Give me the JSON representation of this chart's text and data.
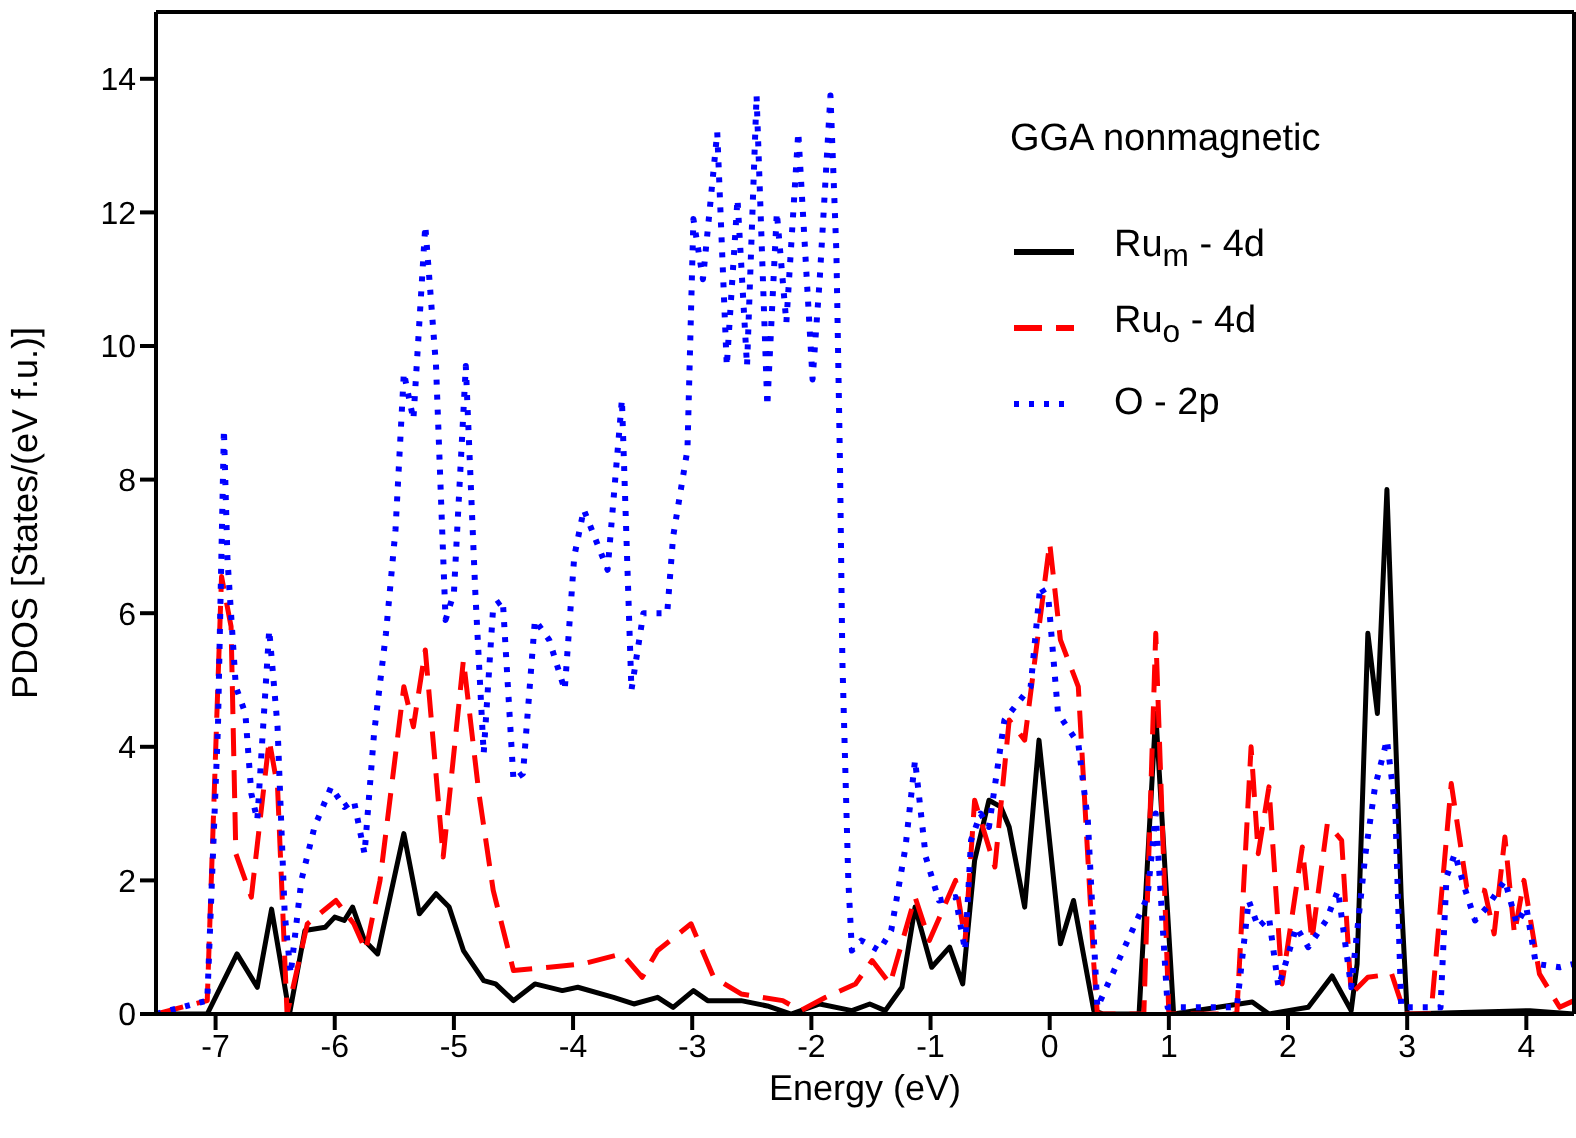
{
  "chart_data": {
    "type": "line",
    "xlabel": "Energy (eV)",
    "ylabel": "PDOS [States/(eV f.u.)]",
    "legend_title": "GGA nonmagnetic",
    "legend": "top right",
    "grid": false,
    "xlim": [
      -7.5,
      4.4
    ],
    "xticks": [
      -7,
      -6,
      -5,
      -4,
      -3,
      -2,
      -1,
      0,
      1,
      2,
      3,
      4
    ],
    "ylim": [
      0,
      15
    ],
    "yticks": [
      0,
      2,
      4,
      6,
      8,
      10,
      12,
      14
    ],
    "series": [
      {
        "name": "Ru$_{m}$ - 4d",
        "color": "#000000",
        "line_style": "solid",
        "x": [
          -7.5,
          -7.07,
          -6.82,
          -6.65,
          -6.53,
          -6.38,
          -6.25,
          -6.08,
          -6.0,
          -5.92,
          -5.85,
          -5.75,
          -5.64,
          -5.42,
          -5.29,
          -5.15,
          -5.04,
          -4.92,
          -4.75,
          -4.65,
          -4.5,
          -4.32,
          -4.09,
          -3.96,
          -3.66,
          -3.49,
          -3.29,
          -3.16,
          -2.99,
          -2.87,
          -2.59,
          -2.37,
          -2.17,
          -1.93,
          -1.66,
          -1.51,
          -1.38,
          -1.24,
          -1.13,
          -0.99,
          -0.84,
          -0.73,
          -0.63,
          -0.51,
          -0.41,
          -0.34,
          -0.21,
          -0.09,
          0.09,
          0.2,
          0.37,
          0.45,
          0.75,
          0.89,
          1.04,
          1.7,
          1.84,
          2.0,
          2.17,
          2.37,
          2.53,
          2.58,
          2.67,
          2.75,
          2.83,
          2.95,
          3.0,
          4.03,
          4.4
        ],
        "values": [
          0,
          0,
          0.9,
          0.4,
          1.57,
          0,
          1.25,
          1.3,
          1.45,
          1.4,
          1.6,
          1.1,
          0.9,
          2.7,
          1.5,
          1.8,
          1.6,
          0.95,
          0.5,
          0.45,
          0.2,
          0.45,
          0.35,
          0.4,
          0.25,
          0.15,
          0.25,
          0.1,
          0.35,
          0.2,
          0.2,
          0.12,
          0,
          0.15,
          0.05,
          0.15,
          0.05,
          0.4,
          1.6,
          0.7,
          1.0,
          0.45,
          2.3,
          3.2,
          3.1,
          2.8,
          1.6,
          4.1,
          1.05,
          1.7,
          0.05,
          0,
          0,
          4.5,
          0,
          0.18,
          0,
          0.05,
          0.1,
          0.57,
          0.05,
          0.75,
          5.7,
          4.5,
          7.85,
          1.75,
          0,
          0.05,
          0
        ]
      },
      {
        "name": "Ru$_{o}$ - 4d",
        "color": "#ff0000",
        "line_style": "dashed",
        "x": [
          -7.5,
          -7.07,
          -6.95,
          -6.87,
          -6.83,
          -6.7,
          -6.55,
          -6.48,
          -6.4,
          -6.23,
          -5.99,
          -5.84,
          -5.74,
          -5.62,
          -5.42,
          -5.34,
          -5.24,
          -5.09,
          -4.92,
          -4.79,
          -4.67,
          -4.5,
          -4.2,
          -3.92,
          -3.59,
          -3.42,
          -3.29,
          -3.01,
          -2.82,
          -2.59,
          -2.42,
          -2.24,
          -2.09,
          -1.88,
          -1.63,
          -1.49,
          -1.34,
          -1.13,
          -1.01,
          -0.79,
          -0.71,
          -0.63,
          -0.46,
          -0.34,
          -0.21,
          0.0,
          0.09,
          0.24,
          0.37,
          0.4,
          0.79,
          0.89,
          1.0,
          1.57,
          1.69,
          1.75,
          1.84,
          1.95,
          2.12,
          2.2,
          2.33,
          2.45,
          2.53,
          2.67,
          2.87,
          2.98,
          3.2,
          3.37,
          3.5,
          3.65,
          3.73,
          3.82,
          3.9,
          3.98,
          4.11,
          4.28,
          4.4
        ],
        "values": [
          0,
          0.2,
          6.55,
          5.8,
          2.4,
          1.75,
          4.1,
          3.4,
          0,
          1.35,
          1.7,
          1.35,
          0.95,
          2.0,
          4.9,
          4.3,
          5.45,
          2.35,
          5.3,
          3.3,
          1.85,
          0.65,
          0.7,
          0.75,
          0.9,
          0.55,
          0.95,
          1.35,
          0.55,
          0.3,
          0.25,
          0.2,
          0.05,
          0.25,
          0.45,
          0.8,
          0.45,
          1.75,
          1.1,
          2.0,
          1.1,
          3.2,
          2.2,
          4.4,
          4.1,
          7.05,
          5.6,
          4.9,
          0.75,
          0,
          0,
          5.7,
          0,
          0,
          4.0,
          2.4,
          3.4,
          0.45,
          2.5,
          1.1,
          2.85,
          2.6,
          0.3,
          0.55,
          0.6,
          0,
          0,
          3.45,
          1.9,
          1.85,
          1.2,
          2.65,
          1.2,
          2.0,
          0.6,
          0.1,
          0.2
        ]
      },
      {
        "name": "O - 2p",
        "color": "#0000ff",
        "line_style": "dotted",
        "x": [
          -7.5,
          -7.07,
          -6.98,
          -6.93,
          -6.9,
          -6.83,
          -6.75,
          -6.7,
          -6.65,
          -6.55,
          -6.48,
          -6.42,
          -6.37,
          -6.28,
          -6.17,
          -6.03,
          -5.92,
          -5.84,
          -5.75,
          -5.67,
          -5.57,
          -5.49,
          -5.42,
          -5.34,
          -5.24,
          -5.15,
          -5.07,
          -5.0,
          -4.9,
          -4.82,
          -4.75,
          -4.67,
          -4.59,
          -4.5,
          -4.42,
          -4.32,
          -4.2,
          -4.07,
          -3.99,
          -3.91,
          -3.71,
          -3.59,
          -3.51,
          -3.41,
          -3.21,
          -3.16,
          -3.04,
          -2.99,
          -2.91,
          -2.79,
          -2.71,
          -2.62,
          -2.54,
          -2.46,
          -2.37,
          -2.29,
          -2.21,
          -2.11,
          -1.99,
          -1.93,
          -1.84,
          -1.79,
          -1.76,
          -1.74,
          -1.69,
          -1.66,
          -1.58,
          -1.43,
          -1.33,
          -1.21,
          -1.13,
          -1.04,
          -0.93,
          -0.79,
          -0.71,
          -0.66,
          -0.58,
          -0.51,
          -0.38,
          -0.16,
          -0.08,
          -0.01,
          0.07,
          0.24,
          0.32,
          0.37,
          0.4,
          0.82,
          0.89,
          0.99,
          1.57,
          1.67,
          1.75,
          1.84,
          1.92,
          2.07,
          2.17,
          2.32,
          2.42,
          2.53,
          2.65,
          2.73,
          2.83,
          2.9,
          2.95,
          3.28,
          3.33,
          3.4,
          3.48,
          3.57,
          3.67,
          3.82,
          3.92,
          4.0,
          4.08,
          4.28,
          4.4
        ],
        "values": [
          0,
          0.2,
          4.3,
          8.75,
          6.8,
          4.9,
          4.5,
          3.3,
          2.9,
          5.75,
          4.3,
          1.5,
          0.6,
          2.0,
          2.8,
          3.4,
          3.1,
          3.2,
          2.4,
          4.2,
          5.7,
          7.25,
          9.6,
          8.9,
          11.8,
          9.7,
          5.9,
          6.3,
          9.7,
          6.3,
          3.9,
          6.1,
          6.2,
          3.5,
          3.6,
          5.9,
          5.6,
          4.85,
          6.85,
          7.55,
          6.65,
          9.2,
          4.85,
          6.0,
          6.0,
          7.15,
          8.45,
          11.9,
          11.0,
          13.2,
          9.7,
          12.2,
          9.7,
          13.75,
          9.1,
          12.0,
          10.35,
          13.2,
          9.5,
          11.0,
          13.75,
          11.4,
          8.25,
          5.3,
          2.0,
          0.95,
          1.1,
          0.95,
          1.25,
          2.5,
          3.8,
          2.35,
          1.7,
          1.75,
          0.95,
          2.6,
          3.0,
          2.8,
          4.4,
          4.9,
          6.4,
          6.2,
          4.5,
          4.05,
          2.9,
          1.15,
          0.1,
          1.75,
          3.0,
          0.1,
          0.1,
          1.7,
          1.3,
          1.45,
          0.4,
          1.3,
          1.0,
          1.4,
          1.85,
          0.4,
          2.4,
          3.4,
          4.1,
          3.1,
          0.1,
          0.1,
          2.05,
          2.4,
          1.9,
          1.4,
          1.6,
          2.0,
          1.35,
          1.6,
          0.75,
          0.7,
          0.75
        ]
      }
    ]
  }
}
